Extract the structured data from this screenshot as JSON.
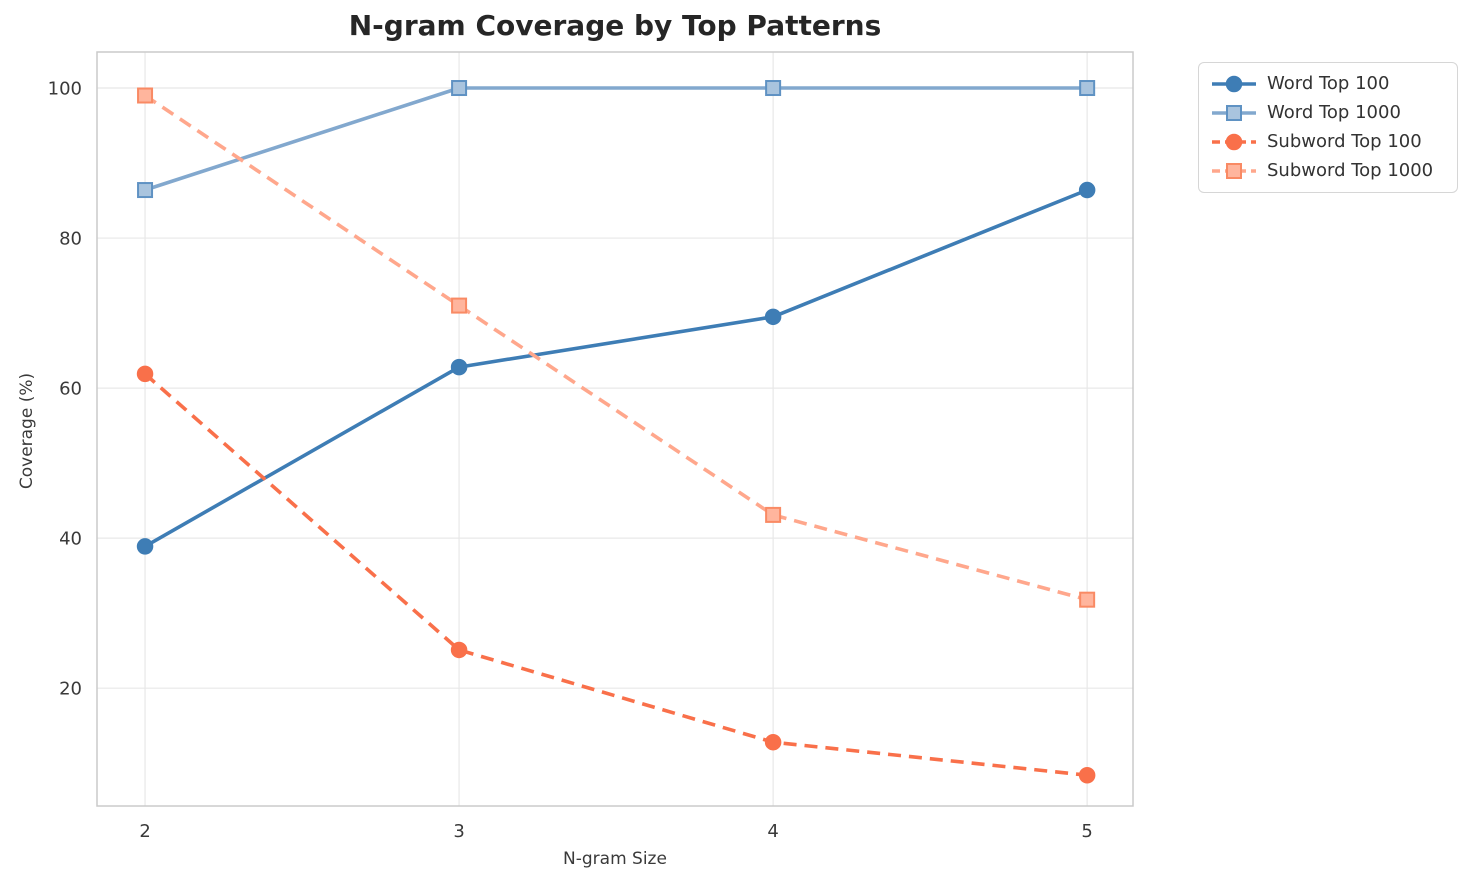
{
  "chart_data": {
    "type": "line",
    "title": "N-gram Coverage by Top Patterns",
    "xlabel": "N-gram Size",
    "ylabel": "Coverage (%)",
    "x": [
      2,
      3,
      4,
      5
    ],
    "xticks": [
      2,
      3,
      4,
      5
    ],
    "xtick_labels": [
      "2",
      "3",
      "4",
      "5"
    ],
    "yticks": [
      20,
      40,
      60,
      80,
      100
    ],
    "ytick_labels": [
      "20",
      "40",
      "60",
      "80",
      "100"
    ],
    "xlim": [
      1.847,
      5.146
    ],
    "ylim": [
      4.3,
      104.8
    ],
    "grid": true,
    "legend_position": "outside-upper-right",
    "colors": {
      "grid": "#e8e8e8",
      "spine": "#cacaca",
      "tick_text": "#3a3a3a",
      "title_text": "#262626"
    },
    "series": [
      {
        "name": "Word Top 100",
        "values": [
          38.9,
          62.8,
          69.5,
          86.4
        ],
        "color": "#3e7db5",
        "linestyle": "solid",
        "marker": "circle",
        "marker_fill": "#3e7db5",
        "marker_edge": "#3e7db5"
      },
      {
        "name": "Word Top 1000",
        "values": [
          86.4,
          100,
          100,
          100
        ],
        "color": "#82a8ce",
        "linestyle": "solid",
        "marker": "square",
        "marker_fill": "#a9c4de",
        "marker_edge": "#5f92c3"
      },
      {
        "name": "Subword Top 100",
        "values": [
          61.9,
          25.1,
          12.8,
          8.4
        ],
        "color": "#f9704a",
        "linestyle": "dashed",
        "marker": "circle",
        "marker_fill": "#f9704a",
        "marker_edge": "#f9704a"
      },
      {
        "name": "Subword Top 1000",
        "values": [
          99.0,
          71.0,
          43.1,
          31.8
        ],
        "color": "#ffa78c",
        "linestyle": "dashed",
        "marker": "square",
        "marker_fill": "#ffb59d",
        "marker_edge": "#f98a64"
      }
    ]
  }
}
